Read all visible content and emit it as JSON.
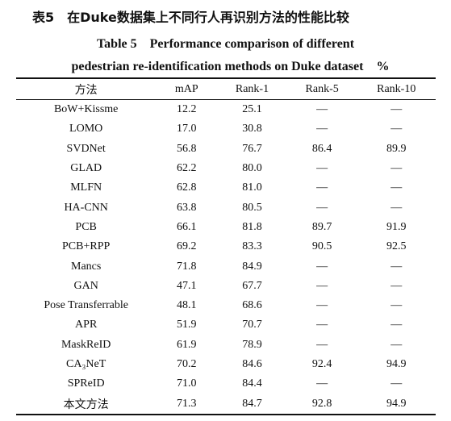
{
  "header": {
    "title_zh": "表5　在Duke数据集上不同行人再识别方法的性能比较",
    "title_en_line1": "Table 5　Performance comparison of different",
    "title_en_line2": "pedestrian re-identification methods on Duke dataset　%"
  },
  "table": {
    "columns": [
      "方法",
      "mAP",
      "Rank-1",
      "Rank-5",
      "Rank-10"
    ],
    "rows": [
      [
        "BoW+Kissme",
        "12.2",
        "25.1",
        "—",
        "—"
      ],
      [
        "LOMO",
        "17.0",
        "30.8",
        "—",
        "—"
      ],
      [
        "SVDNet",
        "56.8",
        "76.7",
        "86.4",
        "89.9"
      ],
      [
        "GLAD",
        "62.2",
        "80.0",
        "—",
        "—"
      ],
      [
        "MLFN",
        "62.8",
        "81.0",
        "—",
        "—"
      ],
      [
        "HA-CNN",
        "63.8",
        "80.5",
        "—",
        "—"
      ],
      [
        "PCB",
        "66.1",
        "81.8",
        "89.7",
        "91.9"
      ],
      [
        "PCB+RPP",
        "69.2",
        "83.3",
        "90.5",
        "92.5"
      ],
      [
        "Mancs",
        "71.8",
        "84.9",
        "—",
        "—"
      ],
      [
        "GAN",
        "47.1",
        "67.7",
        "—",
        "—"
      ],
      [
        "Pose Transferrable",
        "48.1",
        "68.6",
        "—",
        "—"
      ],
      [
        "APR",
        "51.9",
        "70.7",
        "—",
        "—"
      ],
      [
        "MaskReID",
        "61.9",
        "78.9",
        "—",
        "—"
      ],
      [
        "CA₃NeT",
        "70.2",
        "84.6",
        "92.4",
        "94.9"
      ],
      [
        "SPReID",
        "71.0",
        "84.4",
        "—",
        "—"
      ],
      [
        "本文方法",
        "71.3",
        "84.7",
        "92.8",
        "94.9"
      ]
    ]
  }
}
